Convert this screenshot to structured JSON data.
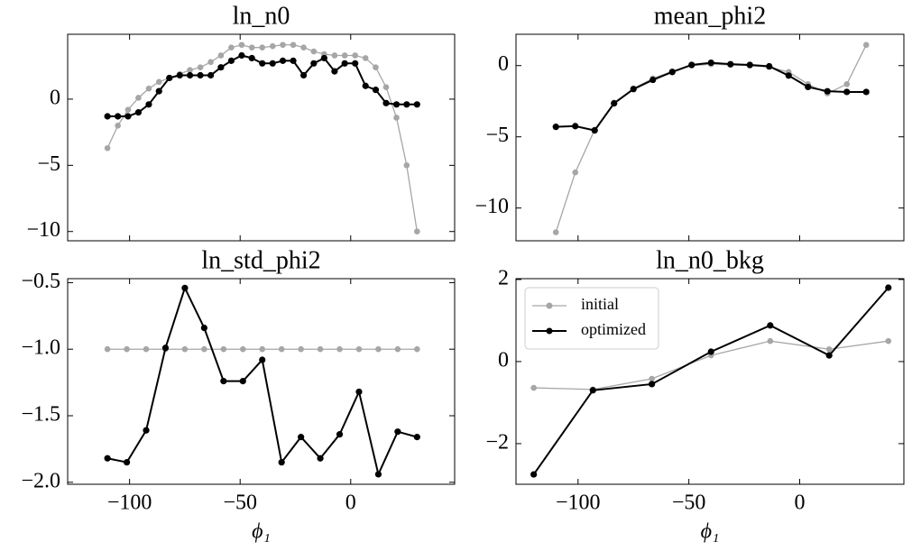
{
  "chart_data": [
    {
      "type": "line",
      "title": "ln_n0",
      "x": [
        -110,
        -105.3,
        -100.7,
        -96,
        -91.3,
        -86.7,
        -82,
        -77.3,
        -72.7,
        -68,
        -63.3,
        -58.7,
        -54,
        -49.3,
        -44.7,
        -40,
        -35.3,
        -30.7,
        -26,
        -21.3,
        -16.7,
        -12,
        -7.3,
        -2.7,
        2,
        6.7,
        11.3,
        16,
        20.7,
        25.3,
        30
      ],
      "series": [
        {
          "color": "#a6a6a6",
          "values": [
            -3.7,
            -2.0,
            -0.8,
            0.1,
            0.8,
            1.3,
            1.6,
            1.9,
            2.2,
            2.4,
            2.8,
            3.3,
            3.9,
            4.1,
            3.9,
            3.9,
            4.0,
            4.1,
            4.1,
            3.9,
            3.6,
            3.4,
            3.3,
            3.3,
            3.3,
            3.1,
            2.4,
            0.9,
            -1.4,
            -5.0,
            -10.0
          ]
        },
        {
          "color": "#000000",
          "values": [
            -1.3,
            -1.3,
            -1.3,
            -1.0,
            -0.4,
            0.6,
            1.6,
            1.8,
            1.8,
            1.8,
            1.8,
            2.4,
            2.9,
            3.3,
            3.1,
            2.7,
            2.7,
            2.9,
            2.9,
            1.8,
            2.7,
            3.1,
            2.1,
            2.7,
            2.7,
            1.0,
            0.7,
            -0.3,
            -0.4,
            -0.4,
            -0.4
          ]
        }
      ],
      "xlim": [
        -128,
        47
      ],
      "ylim": [
        -10.7,
        4.9
      ],
      "xticks": [
        -100,
        -50,
        0
      ],
      "xticklabels": false,
      "yticks": [
        {
          "value": -10,
          "label": "−10"
        },
        {
          "value": -5,
          "label": "−5"
        },
        0
      ]
    },
    {
      "type": "line",
      "title": "mean_phi2",
      "x": [
        -110,
        -101.25,
        -92.5,
        -83.75,
        -75,
        -66.25,
        -57.5,
        -48.75,
        -40,
        -31.25,
        -22.5,
        -13.75,
        -5,
        3.75,
        12.5,
        21.25,
        30
      ],
      "series": [
        {
          "color": "#a6a6a6",
          "values": [
            -11.7,
            -7.5,
            -4.5,
            -2.6,
            -1.6,
            -0.9,
            -0.4,
            0.0,
            0.1,
            0.05,
            0.0,
            -0.1,
            -0.45,
            -1.3,
            -1.95,
            -1.3,
            1.45
          ]
        },
        {
          "color": "#000000",
          "values": [
            -4.3,
            -4.25,
            -4.55,
            -2.65,
            -1.65,
            -1.0,
            -0.45,
            0.05,
            0.2,
            0.1,
            0.05,
            -0.05,
            -0.7,
            -1.5,
            -1.8,
            -1.85,
            -1.85
          ]
        }
      ],
      "xlim": [
        -128,
        47
      ],
      "ylim": [
        -12.3,
        2.2
      ],
      "xticks": [
        -100,
        -50,
        0
      ],
      "xticklabels": false,
      "yticks": [
        {
          "value": -10,
          "label": "−10"
        },
        {
          "value": -5,
          "label": "−5"
        },
        0
      ]
    },
    {
      "type": "line",
      "title": "ln_std_phi2",
      "xlabel": "ϕ₁",
      "x": [
        -110,
        -101.25,
        -92.5,
        -83.75,
        -75,
        -66.25,
        -57.5,
        -48.75,
        -40,
        -31.25,
        -22.5,
        -13.75,
        -5,
        3.75,
        12.5,
        21.25,
        30
      ],
      "series": [
        {
          "color": "#a6a6a6",
          "values": [
            -1,
            -1,
            -1,
            -1,
            -1,
            -1,
            -1,
            -1,
            -1,
            -1,
            -1,
            -1,
            -1,
            -1,
            -1,
            -1,
            -1
          ]
        },
        {
          "color": "#000000",
          "values": [
            -1.82,
            -1.85,
            -1.61,
            -0.99,
            -0.54,
            -0.84,
            -1.24,
            -1.24,
            -1.08,
            -1.85,
            -1.66,
            -1.82,
            -1.64,
            -1.32,
            -1.94,
            -1.62,
            -1.66
          ]
        }
      ],
      "xlim": [
        -128,
        47
      ],
      "ylim": [
        -2.015,
        -0.47
      ],
      "xticks": [
        {
          "value": -100,
          "label": "−100"
        },
        {
          "value": -50,
          "label": "−50"
        },
        0
      ],
      "yticks": [
        {
          "value": -2,
          "label": "−2.0"
        },
        {
          "value": -1.5,
          "label": "−1.5"
        },
        {
          "value": -1,
          "label": "−1.0"
        },
        {
          "value": -0.5,
          "label": "−0.5"
        }
      ]
    },
    {
      "type": "line",
      "title": "ln_n0_bkg",
      "xlabel": "ϕ₁",
      "legend": "upper left",
      "x": [
        -120,
        -93.3,
        -66.7,
        -40,
        -13.3,
        13.3,
        40
      ],
      "series": [
        {
          "name": "initial",
          "color": "#a6a6a6",
          "values": [
            -0.64,
            -0.68,
            -0.42,
            0.15,
            0.5,
            0.3,
            0.5
          ]
        },
        {
          "name": "optimized",
          "color": "#000000",
          "values": [
            -2.75,
            -0.7,
            -0.55,
            0.24,
            0.88,
            0.15,
            1.8
          ]
        }
      ],
      "xlim": [
        -128,
        47
      ],
      "ylim": [
        -2.99,
        2.02
      ],
      "xticks": [
        {
          "value": -100,
          "label": "−100"
        },
        {
          "value": -50,
          "label": "−50"
        },
        0
      ],
      "yticks": [
        {
          "value": -2,
          "label": "−2"
        },
        0,
        2
      ]
    }
  ]
}
